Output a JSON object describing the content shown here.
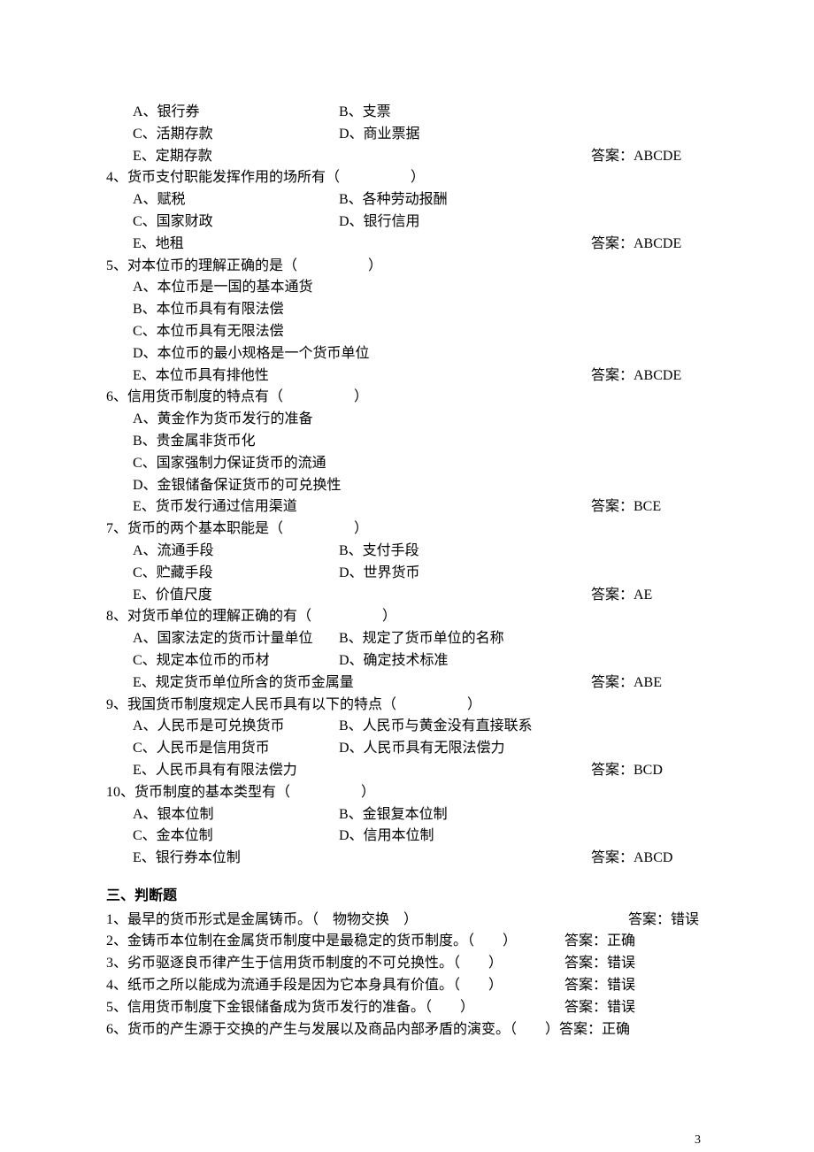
{
  "q3": {
    "optA": "A、银行券",
    "optB": "B、支票",
    "optC": "C、活期存款",
    "optD": "D、商业票据",
    "optE": "E、定期存款",
    "answer": "答案：ABCDE"
  },
  "q4": {
    "stem": "4、货币支付职能发挥作用的场所有（　　　　　）",
    "optA": "A、赋税",
    "optB": "B、各种劳动报酬",
    "optC": "C、国家财政",
    "optD": "D、银行信用",
    "optE": "E、地租",
    "answer": "答案：ABCDE"
  },
  "q5": {
    "stem": "5、对本位币的理解正确的是（　　　　　）",
    "optA": "A、本位币是一国的基本通货",
    "optB": "B、本位币具有有限法偿",
    "optC": "C、本位币具有无限法偿",
    "optD": "D、本位币的最小规格是一个货币单位",
    "optE": "E、本位币具有排他性",
    "answer": "答案：ABCDE"
  },
  "q6": {
    "stem": "6、信用货币制度的特点有（　　　　　）",
    "optA": "A、黄金作为货币发行的准备",
    "optB": "B、贵金属非货币化",
    "optC": "C、国家强制力保证货币的流通",
    "optD": "D、金银储备保证货币的可兑换性",
    "optE": "E、货币发行通过信用渠道",
    "answer": "答案：BCE"
  },
  "q7": {
    "stem": "7、货币的两个基本职能是（　　　　　）",
    "optA": "A、流通手段",
    "optB": "B、支付手段",
    "optC": "C、贮藏手段",
    "optD": "D、世界货币",
    "optE": "E、价值尺度",
    "answer": "答案：AE"
  },
  "q8": {
    "stem": "8、对货币单位的理解正确的有（　　　　　）",
    "optA": "A、国家法定的货币计量单位",
    "optB": "B、规定了货币单位的名称",
    "optC": "C、规定本位币的币材",
    "optD": "D、确定技术标准",
    "optE": "E、规定货币单位所含的货币金属量",
    "answer": "答案：ABE"
  },
  "q9": {
    "stem": "9、我国货币制度规定人民币具有以下的特点（　　　　　）",
    "optA": "A、人民币是可兑换货币",
    "optB": "B、人民币与黄金没有直接联系",
    "optC": "C、人民币是信用货币",
    "optD": "D、人民币具有无限法偿力",
    "optE": "E、人民币具有有限法偿力",
    "answer": "答案：BCD"
  },
  "q10": {
    "stem": "10、货币制度的基本类型有（　　　　　）",
    "optA": "A、银本位制",
    "optB": "B、金银复本位制",
    "optC": "C、金本位制",
    "optD": "D、信用本位制",
    "optE": "E、银行券本位制",
    "answer": "答案：ABCD"
  },
  "section3": {
    "title": "三、判断题"
  },
  "tf1": {
    "stem": "1、最早的货币形式是金属铸币。（　物物交换　）",
    "answer": "答案：错误"
  },
  "tf2": {
    "stem": "2、金铸币本位制在金属货币制度中是最稳定的货币制度。（　　）",
    "answer": "答案：正确"
  },
  "tf3": {
    "stem": "3、劣币驱逐良币律产生于信用货币制度的不可兑换性。（　　）",
    "answer": "答案：错误"
  },
  "tf4": {
    "stem": "4、纸币之所以能成为流通手段是因为它本身具有价值。（　　）",
    "answer": "答案：错误"
  },
  "tf5": {
    "stem": "5、信用货币制度下金银储备成为货币发行的准备。（　　）",
    "answer": "答案：错误"
  },
  "tf6": {
    "stem": "6、货币的产生源于交换的产生与发展以及商品内部矛盾的演变。（　　）",
    "answer": "答案：正确"
  },
  "pageNum": "3"
}
